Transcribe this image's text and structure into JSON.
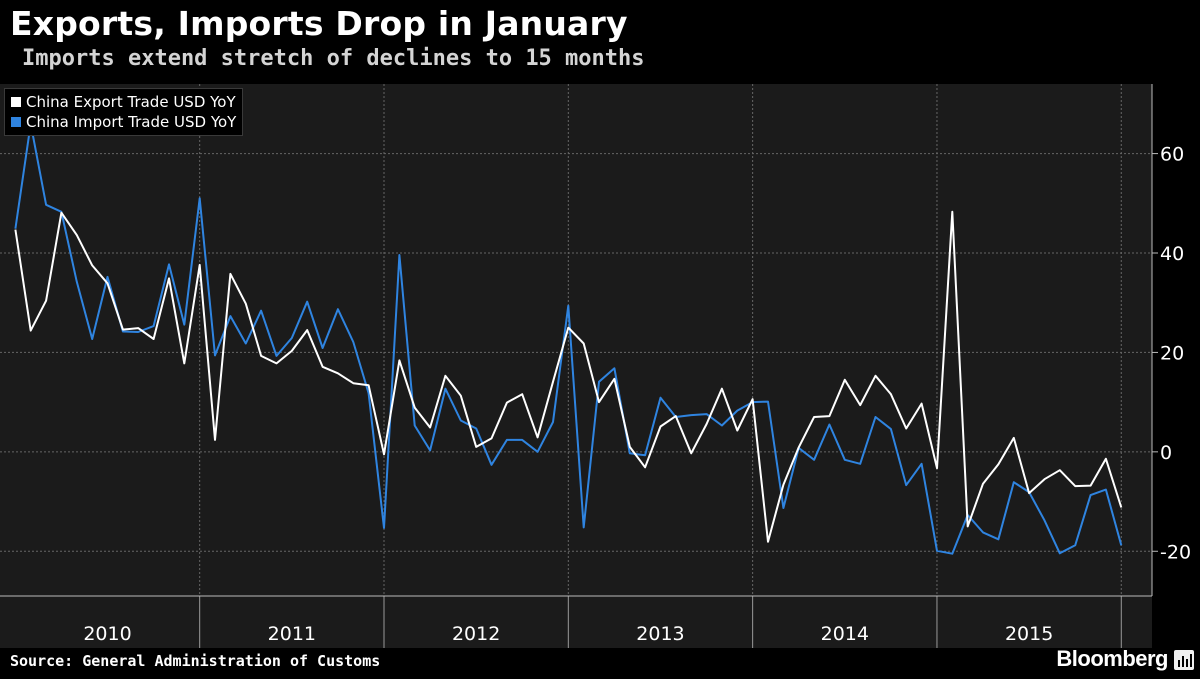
{
  "header": {
    "title": "Exports, Imports Drop in January",
    "subtitle": "Imports extend stretch of declines to 15 months"
  },
  "footer": {
    "source": "Source: General Administration of Customs",
    "brand": "Bloomberg",
    "brand_icon": "bloomberg-terminal-icon"
  },
  "colors": {
    "background": "#000000",
    "plot_background": "#1b1b1b",
    "exports": "#ffffff",
    "imports": "#2f84e0",
    "grid": "#666666"
  },
  "chart_data": {
    "type": "line",
    "title": "Exports, Imports Drop in January",
    "subtitle": "Imports extend stretch of declines to 15 months",
    "x_start": "2010-01",
    "x_end": "2016-01",
    "x_range": [
      "2009-12",
      "2016-03"
    ],
    "x_tick_labels": [
      "2010",
      "2011",
      "2012",
      "2013",
      "2014",
      "2015"
    ],
    "y_ticks": [
      -20,
      0,
      20,
      40,
      60
    ],
    "y_range": [
      -29,
      74
    ],
    "y_axis_side": "right",
    "grid": true,
    "legend_position": "top-left",
    "x": [
      "2010-01",
      "2010-02",
      "2010-03",
      "2010-04",
      "2010-05",
      "2010-06",
      "2010-07",
      "2010-08",
      "2010-09",
      "2010-10",
      "2010-11",
      "2010-12",
      "2011-01",
      "2011-02",
      "2011-03",
      "2011-04",
      "2011-05",
      "2011-06",
      "2011-07",
      "2011-08",
      "2011-09",
      "2011-10",
      "2011-11",
      "2011-12",
      "2012-01",
      "2012-02",
      "2012-03",
      "2012-04",
      "2012-05",
      "2012-06",
      "2012-07",
      "2012-08",
      "2012-09",
      "2012-10",
      "2012-11",
      "2012-12",
      "2013-01",
      "2013-02",
      "2013-03",
      "2013-04",
      "2013-05",
      "2013-06",
      "2013-07",
      "2013-08",
      "2013-09",
      "2013-10",
      "2013-11",
      "2013-12",
      "2014-01",
      "2014-02",
      "2014-03",
      "2014-04",
      "2014-05",
      "2014-06",
      "2014-07",
      "2014-08",
      "2014-09",
      "2014-10",
      "2014-11",
      "2014-12",
      "2015-01",
      "2015-02",
      "2015-03",
      "2015-04",
      "2015-05",
      "2015-06",
      "2015-07",
      "2015-08",
      "2015-09",
      "2015-10",
      "2015-11",
      "2015-12",
      "2016-01"
    ],
    "series": [
      {
        "name": "China Export Trade USD YoY",
        "color": "#ffffff",
        "values": [
          44.7,
          24.4,
          30.4,
          48.1,
          43.6,
          37.5,
          33.9,
          24.6,
          24.9,
          22.7,
          34.9,
          17.8,
          37.6,
          2.4,
          35.8,
          29.8,
          19.3,
          17.8,
          20.3,
          24.5,
          17.1,
          15.8,
          13.8,
          13.4,
          -0.5,
          18.4,
          8.9,
          4.9,
          15.3,
          11.3,
          1.0,
          2.7,
          9.9,
          11.6,
          2.9,
          14.1,
          25.0,
          21.8,
          10.0,
          14.7,
          1.0,
          -3.1,
          5.1,
          7.2,
          -0.3,
          5.6,
          12.7,
          4.3,
          10.6,
          -18.1,
          -6.6,
          0.9,
          7.0,
          7.2,
          14.5,
          9.4,
          15.3,
          11.6,
          4.7,
          9.7,
          -3.3,
          48.3,
          -15.0,
          -6.4,
          -2.5,
          2.8,
          -8.3,
          -5.5,
          -3.7,
          -6.9,
          -6.8,
          -1.4,
          -11.2
        ]
      },
      {
        "name": "China Import Trade USD YoY",
        "color": "#2f84e0",
        "values": [
          44.9,
          66.0,
          49.7,
          48.3,
          34.2,
          22.7,
          35.2,
          24.2,
          24.1,
          25.3,
          37.7,
          25.6,
          51.0,
          19.4,
          27.3,
          21.8,
          28.4,
          19.3,
          22.9,
          30.2,
          20.9,
          28.7,
          22.1,
          11.8,
          -15.3,
          39.6,
          5.3,
          0.3,
          12.7,
          6.3,
          4.7,
          -2.6,
          2.4,
          2.4,
          0.0,
          6.0,
          29.4,
          -15.2,
          14.1,
          16.8,
          -0.3,
          -0.7,
          10.9,
          7.0,
          7.4,
          7.6,
          5.3,
          8.3,
          10.0,
          10.1,
          -11.3,
          0.8,
          -1.6,
          5.5,
          -1.6,
          -2.4,
          7.0,
          4.6,
          -6.7,
          -2.4,
          -19.9,
          -20.5,
          -12.7,
          -16.2,
          -17.6,
          -6.1,
          -8.1,
          -13.8,
          -20.4,
          -18.8,
          -8.7,
          -7.6,
          -18.8
        ]
      }
    ]
  }
}
